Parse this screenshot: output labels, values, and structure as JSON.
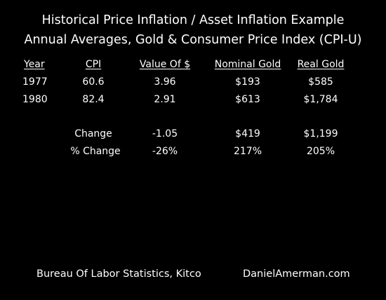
{
  "title": {
    "line1": "Historical Price Inflation / Asset Inflation Example",
    "line2": "Annual Averages, Gold & Consumer Price Index (CPI-U)"
  },
  "table": {
    "headers": [
      "Year",
      "CPI",
      "Value Of $",
      "Nominal Gold",
      "Real Gold"
    ],
    "rows": [
      [
        "1977",
        "60.6",
        "3.96",
        "$193",
        "$585"
      ],
      [
        "1980",
        "82.4",
        "2.91",
        "$613",
        "$1,784"
      ]
    ],
    "summary": [
      [
        "Change",
        "-1.05",
        "$419",
        "$1,199"
      ],
      [
        "% Change",
        "-26%",
        "217%",
        "205%"
      ]
    ]
  },
  "footer": {
    "source": "Bureau Of Labor Statistics, Kitco",
    "website": "DanielAmerman.com"
  }
}
